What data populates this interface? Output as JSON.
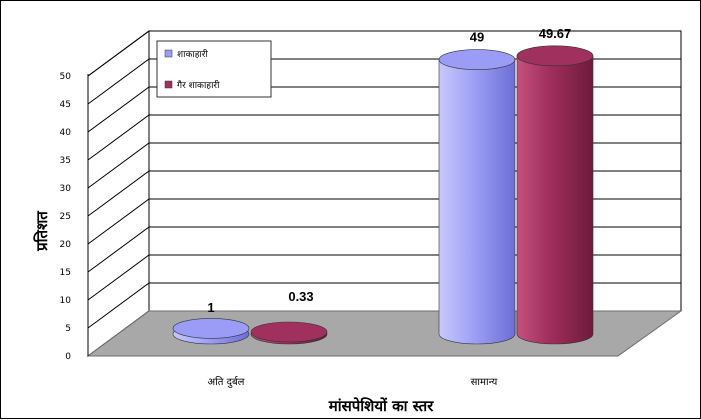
{
  "chart_data": {
    "type": "bar",
    "style": "3d-cylinder",
    "categories": [
      "अति दुर्बल",
      "सामान्य"
    ],
    "series": [
      {
        "name": "शाकाहारी",
        "values": [
          1,
          49
        ],
        "color": "#9a9cf6"
      },
      {
        "name": "गैर शाकाहारी",
        "values": [
          0.33,
          49.67
        ],
        "color": "#a0305e"
      }
    ],
    "data_labels": [
      "1",
      "0.33",
      "49",
      "49.67"
    ],
    "ylim": [
      0,
      50
    ],
    "yticks": [
      "0",
      "5",
      "10",
      "15",
      "20",
      "25",
      "30",
      "35",
      "40",
      "45",
      "50"
    ],
    "xlabel": "मांसपेशियों का स्तर",
    "ylabel": "प्रतिशत",
    "grid": true,
    "legend_position": "top-left",
    "floor_color": "#a8a8a8"
  }
}
